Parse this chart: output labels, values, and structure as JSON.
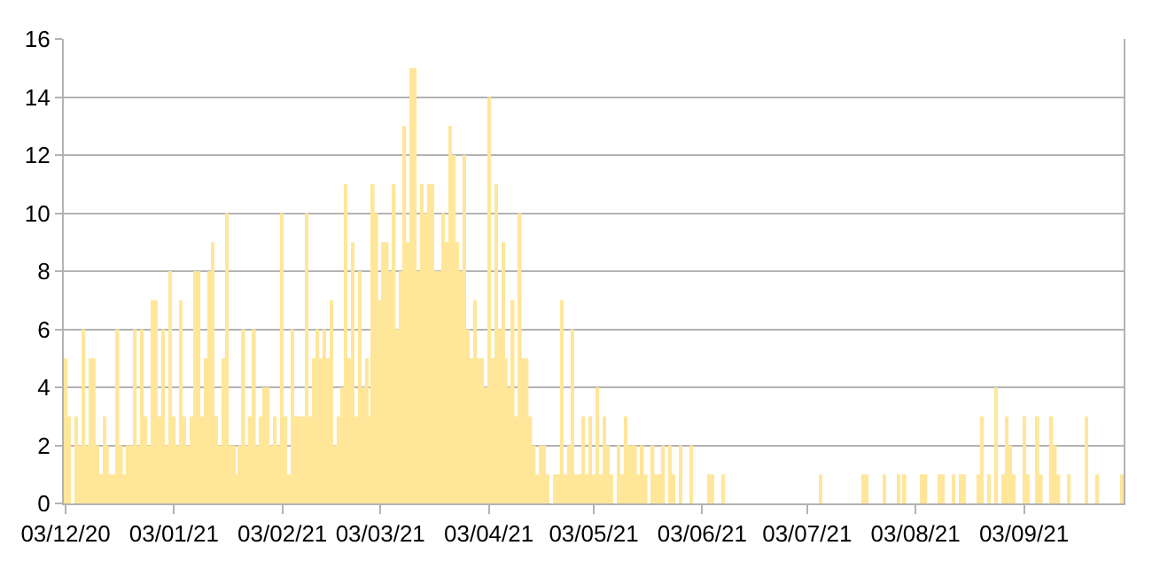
{
  "chart_data": {
    "type": "bar",
    "x": [
      "2020-12-03",
      "2020-12-04",
      "2020-12-05",
      "2020-12-06",
      "2020-12-07",
      "2020-12-08",
      "2020-12-09",
      "2020-12-10",
      "2020-12-11",
      "2020-12-12",
      "2020-12-13",
      "2020-12-14",
      "2020-12-15",
      "2020-12-16",
      "2020-12-17",
      "2020-12-18",
      "2020-12-19",
      "2020-12-20",
      "2020-12-21",
      "2020-12-22",
      "2020-12-23",
      "2020-12-24",
      "2020-12-25",
      "2020-12-26",
      "2020-12-27",
      "2020-12-28",
      "2020-12-29",
      "2020-12-30",
      "2020-12-31",
      "2021-01-01",
      "2021-01-02",
      "2021-01-03",
      "2021-01-04",
      "2021-01-05",
      "2021-01-06",
      "2021-01-07",
      "2021-01-08",
      "2021-01-09",
      "2021-01-10",
      "2021-01-11",
      "2021-01-12",
      "2021-01-13",
      "2021-01-14",
      "2021-01-15",
      "2021-01-16",
      "2021-01-17",
      "2021-01-18",
      "2021-01-19",
      "2021-01-20",
      "2021-01-21",
      "2021-01-22",
      "2021-01-23",
      "2021-01-24",
      "2021-01-25",
      "2021-01-26",
      "2021-01-27",
      "2021-01-28",
      "2021-01-29",
      "2021-01-30",
      "2021-01-31",
      "2021-02-01",
      "2021-02-02",
      "2021-02-03",
      "2021-02-04",
      "2021-02-05",
      "2021-02-06",
      "2021-02-07",
      "2021-02-08",
      "2021-02-09",
      "2021-02-10",
      "2021-02-11",
      "2021-02-12",
      "2021-02-13",
      "2021-02-14",
      "2021-02-15",
      "2021-02-16",
      "2021-02-17",
      "2021-02-18",
      "2021-02-19",
      "2021-02-20",
      "2021-02-21",
      "2021-02-22",
      "2021-02-23",
      "2021-02-24",
      "2021-02-25",
      "2021-02-26",
      "2021-02-27",
      "2021-02-28",
      "2021-03-01",
      "2021-03-02",
      "2021-03-03",
      "2021-03-04",
      "2021-03-05",
      "2021-03-06",
      "2021-03-07",
      "2021-03-08",
      "2021-03-09",
      "2021-03-10",
      "2021-03-11",
      "2021-03-12",
      "2021-03-13",
      "2021-03-14",
      "2021-03-15",
      "2021-03-16",
      "2021-03-17",
      "2021-03-18",
      "2021-03-19",
      "2021-03-20",
      "2021-03-21",
      "2021-03-22",
      "2021-03-23",
      "2021-03-24",
      "2021-03-25",
      "2021-03-26",
      "2021-03-27",
      "2021-03-28",
      "2021-03-29",
      "2021-03-30",
      "2021-03-31",
      "2021-04-01",
      "2021-04-02",
      "2021-04-03",
      "2021-04-04",
      "2021-04-05",
      "2021-04-06",
      "2021-04-07",
      "2021-04-08",
      "2021-04-09",
      "2021-04-10",
      "2021-04-11",
      "2021-04-12",
      "2021-04-13",
      "2021-04-14",
      "2021-04-15",
      "2021-04-16",
      "2021-04-17",
      "2021-04-18",
      "2021-04-19",
      "2021-04-20",
      "2021-04-21",
      "2021-04-22",
      "2021-04-23",
      "2021-04-24",
      "2021-04-25",
      "2021-04-26",
      "2021-04-27",
      "2021-04-28",
      "2021-04-29",
      "2021-04-30",
      "2021-05-01",
      "2021-05-02",
      "2021-05-03",
      "2021-05-04",
      "2021-05-05",
      "2021-05-06",
      "2021-05-07",
      "2021-05-08",
      "2021-05-09",
      "2021-05-10",
      "2021-05-11",
      "2021-05-12",
      "2021-05-13",
      "2021-05-14",
      "2021-05-15",
      "2021-05-16",
      "2021-05-17",
      "2021-05-18",
      "2021-05-19",
      "2021-05-20",
      "2021-05-21",
      "2021-05-22",
      "2021-05-23",
      "2021-05-24",
      "2021-05-25",
      "2021-05-26",
      "2021-05-27",
      "2021-05-28",
      "2021-05-29",
      "2021-05-30",
      "2021-05-31",
      "2021-06-05",
      "2021-06-06",
      "2021-06-09",
      "2021-07-07",
      "2021-07-19",
      "2021-07-20",
      "2021-07-25",
      "2021-07-29",
      "2021-07-31",
      "2021-08-05",
      "2021-08-06",
      "2021-08-10",
      "2021-08-11",
      "2021-08-14",
      "2021-08-16",
      "2021-08-17",
      "2021-08-21",
      "2021-08-22",
      "2021-08-24",
      "2021-08-26",
      "2021-08-28",
      "2021-08-29",
      "2021-08-30",
      "2021-08-31",
      "2021-09-03",
      "2021-09-04",
      "2021-09-07",
      "2021-09-08",
      "2021-09-11",
      "2021-09-12",
      "2021-09-13",
      "2021-09-16",
      "2021-09-21",
      "2021-09-24",
      "2021-10-01"
    ],
    "values": [
      5,
      3,
      0,
      3,
      2,
      6,
      2,
      5,
      5,
      2,
      1,
      3,
      2,
      1,
      1,
      6,
      2,
      1,
      2,
      2,
      6,
      2,
      6,
      3,
      2,
      7,
      7,
      3,
      6,
      2,
      8,
      3,
      2,
      7,
      3,
      2,
      3,
      8,
      8,
      3,
      5,
      8,
      9,
      3,
      2,
      5,
      10,
      2,
      2,
      1,
      2,
      6,
      2,
      3,
      6,
      2,
      3,
      4,
      4,
      2,
      3,
      2,
      10,
      3,
      1,
      6,
      3,
      3,
      3,
      10,
      3,
      5,
      6,
      5,
      6,
      5,
      7,
      2,
      3,
      4,
      11,
      5,
      9,
      3,
      8,
      4,
      5,
      3,
      11,
      10,
      7,
      9,
      9,
      8,
      11,
      6,
      8,
      13,
      9,
      15,
      15,
      8,
      11,
      10,
      11,
      11,
      8,
      8,
      10,
      9,
      13,
      12,
      9,
      8,
      12,
      6,
      5,
      7,
      5,
      5,
      4,
      14,
      5,
      11,
      6,
      9,
      5,
      4,
      7,
      3,
      10,
      5,
      5,
      3,
      2,
      1,
      2,
      2,
      1,
      0,
      1,
      1,
      7,
      1,
      2,
      6,
      1,
      1,
      3,
      1,
      3,
      1,
      4,
      1,
      3,
      2,
      1,
      0,
      2,
      1,
      3,
      2,
      2,
      2,
      1,
      2,
      1,
      0,
      2,
      1,
      1,
      2,
      0,
      2,
      1,
      0,
      2,
      0,
      0,
      2,
      1,
      1,
      1,
      1,
      1,
      1,
      1,
      1,
      1,
      1,
      1,
      1,
      1,
      1,
      1,
      1,
      1,
      3,
      1,
      4,
      1,
      3,
      2,
      1,
      3,
      1,
      3,
      1,
      3,
      2,
      1,
      1,
      3,
      1,
      1
    ],
    "color": "#ffe699",
    "xlim": [
      "2020-12-02T12:00",
      "2021-10-01T12:00"
    ],
    "xticks": [
      {
        "value": "2020-12-03",
        "label": "03/12/20"
      },
      {
        "value": "2021-01-03",
        "label": "03/01/21"
      },
      {
        "value": "2021-02-03",
        "label": "03/02/21"
      },
      {
        "value": "2021-03-03",
        "label": "03/03/21"
      },
      {
        "value": "2021-04-03",
        "label": "03/04/21"
      },
      {
        "value": "2021-05-03",
        "label": "03/05/21"
      },
      {
        "value": "2021-06-03",
        "label": "03/06/21"
      },
      {
        "value": "2021-07-03",
        "label": "03/07/21"
      },
      {
        "value": "2021-08-03",
        "label": "03/08/21"
      },
      {
        "value": "2021-09-03",
        "label": "03/09/21"
      }
    ],
    "ylim": [
      0,
      16
    ],
    "yticks": [
      0,
      2,
      4,
      6,
      8,
      10,
      12,
      14,
      16
    ],
    "grid": "y"
  }
}
